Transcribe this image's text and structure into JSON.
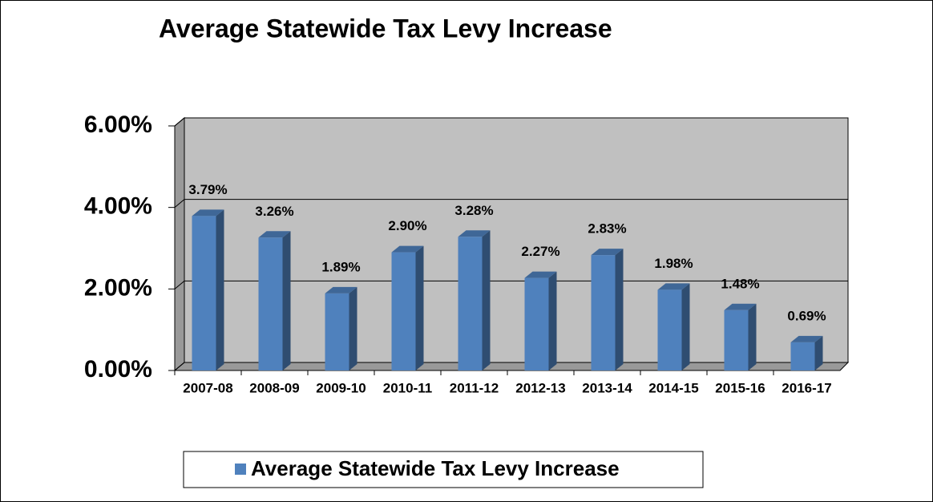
{
  "chart_data": {
    "type": "bar3d",
    "title": "Average Statewide Tax Levy Increase",
    "categories": [
      "2007-08",
      "2008-09",
      "2009-10",
      "2010-11",
      "2011-12",
      "2012-13",
      "2013-14",
      "2014-15",
      "2015-16",
      "2016-17"
    ],
    "series": [
      {
        "name": "Average Statewide Tax Levy Increase",
        "color": "#4f81bd",
        "values": [
          3.79,
          3.26,
          1.89,
          2.9,
          3.28,
          2.27,
          2.83,
          1.98,
          1.48,
          0.69
        ],
        "value_labels": [
          "3.79%",
          "3.26%",
          "1.89%",
          "2.90%",
          "3.28%",
          "2.27%",
          "2.83%",
          "1.98%",
          "1.48%",
          "0.69%"
        ]
      }
    ],
    "ylim": [
      0,
      6
    ],
    "yticks": [
      {
        "value": 0,
        "label": "0.00%"
      },
      {
        "value": 2,
        "label": "2.00%"
      },
      {
        "value": 4,
        "label": "4.00%"
      },
      {
        "value": 6,
        "label": "6.00%"
      }
    ],
    "grid": true,
    "legend": "bottom"
  }
}
